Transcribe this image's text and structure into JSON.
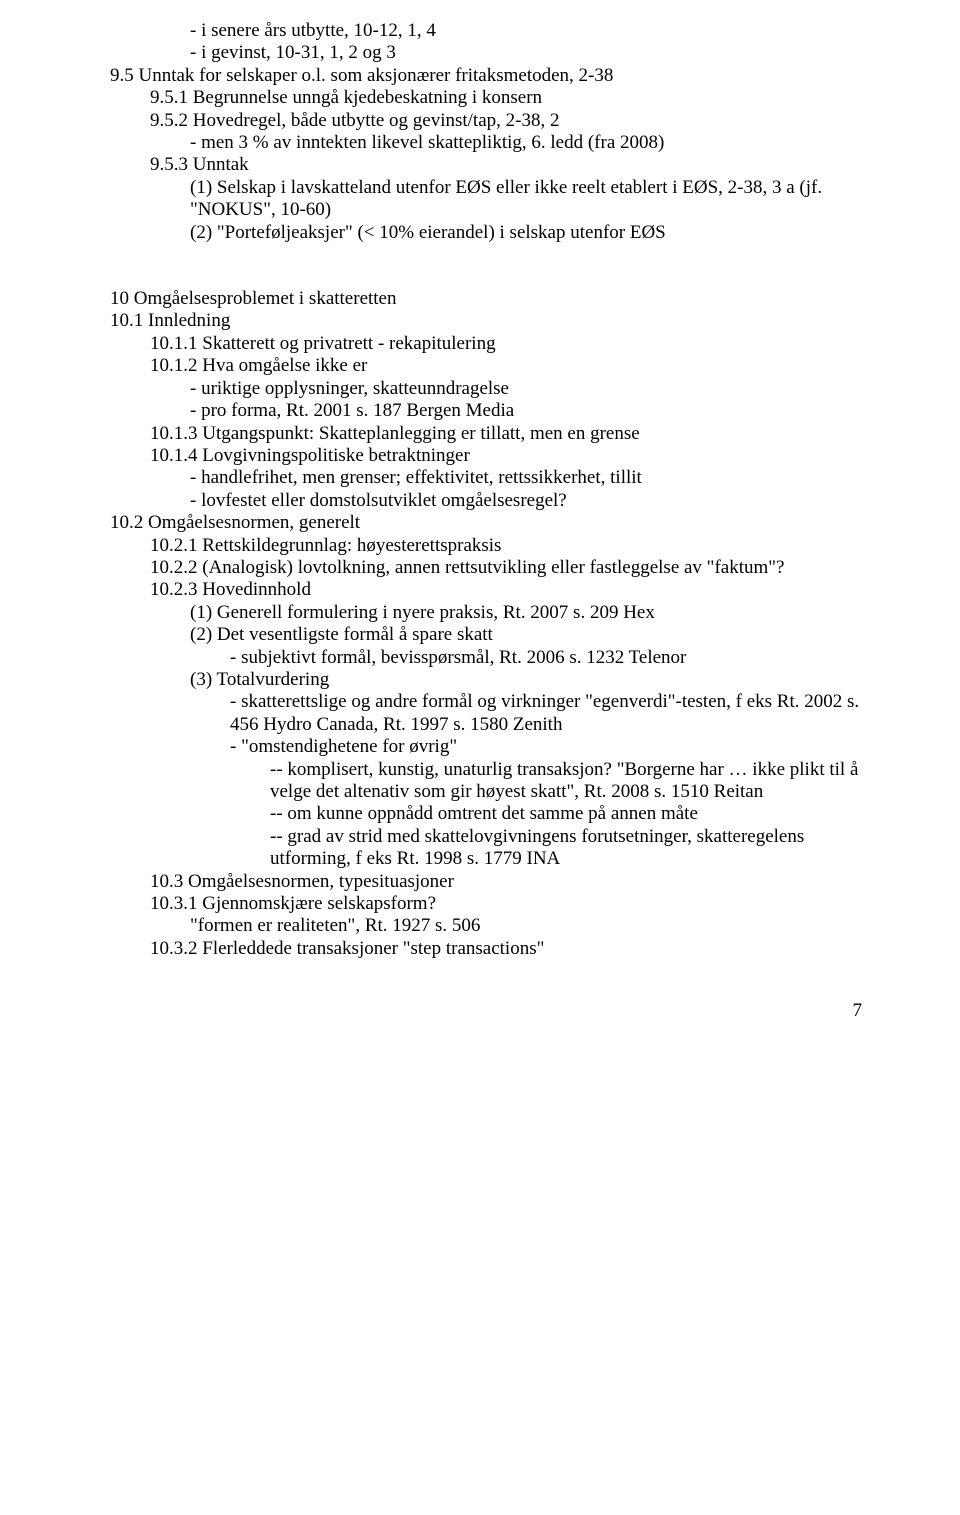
{
  "l1": "- i senere års utbytte, 10-12, 1, 4",
  "l2": "- i gevinst, 10-31, 1, 2 og 3",
  "l3": "9.5 Unntak for selskaper o.l. som aksjonærer fritaksmetoden, 2-38",
  "l4": "9.5.1 Begrunnelse unngå kjedebeskatning i konsern",
  "l5": "9.5.2 Hovedregel, både utbytte og gevinst/tap, 2-38, 2",
  "l6": "- men 3 % av inntekten likevel skattepliktig, 6. ledd (fra 2008)",
  "l7": "9.5.3 Unntak",
  "l8": "(1) Selskap i lavskatteland utenfor EØS eller ikke reelt etablert i EØS, 2-38, 3 a (jf. \"NOKUS\", 10-60)",
  "l9": "(2) \"Porteføljeaksjer\" (< 10% eierandel) i selskap utenfor EØS",
  "l10": "10 Omgåelsesproblemet i skatteretten",
  "l11": "10.1 Innledning",
  "l12": "10.1.1 Skatterett og privatrett - rekapitulering",
  "l13": "10.1.2 Hva omgåelse ikke er",
  "l14": "- uriktige opplysninger, skatteunndragelse",
  "l15": "- pro forma, Rt. 2001 s. 187 Bergen Media",
  "l16": "10.1.3 Utgangspunkt: Skatteplanlegging er tillatt, men en grense",
  "l17": "10.1.4 Lovgivningspolitiske betraktninger",
  "l18": "- handlefrihet, men grenser; effektivitet, rettssikkerhet, tillit",
  "l19": "- lovfestet eller domstolsutviklet omgåelsesregel?",
  "l20": "10.2 Omgåelsesnormen, generelt",
  "l21": "10.2.1 Rettskildegrunnlag: høyesterettspraksis",
  "l22": "10.2.2 (Analogisk) lovtolkning, annen rettsutvikling eller fastleggelse av \"faktum\"?",
  "l23": "10.2.3 Hovedinnhold",
  "l24": "(1) Generell formulering i nyere praksis, Rt. 2007 s. 209 Hex",
  "l25": "(2) Det vesentligste formål å spare skatt",
  "l26": "- subjektivt formål, bevisspørsmål, Rt. 2006 s. 1232 Telenor",
  "l27": "(3) Totalvurdering",
  "l28": "- skatterettslige og andre formål og virkninger \"egenverdi\"-testen, f eks Rt. 2002 s. 456 Hydro Canada, Rt. 1997 s. 1580 Zenith",
  "l29": "- \"omstendighetene for øvrig\"",
  "l30": "-- komplisert, kunstig, unaturlig transaksjon? \"Borgerne har … ikke plikt til å velge det altenativ som gir høyest skatt\", Rt. 2008 s. 1510 Reitan",
  "l31": "-- om kunne oppnådd omtrent det samme på annen måte",
  "l32": "-- grad av strid med skattelovgivningens forutsetninger, skatteregelens utforming, f eks Rt. 1998 s. 1779 INA",
  "l33": "10.3 Omgåelsesnormen, typesituasjoner",
  "l34": "10.3.1 Gjennomskjære selskapsform?",
  "l35": "\"formen er realiteten\", Rt. 1927 s. 506",
  "l36": "10.3.2 Flerleddede transaksjoner \"step transactions\"",
  "pagenum": "7"
}
